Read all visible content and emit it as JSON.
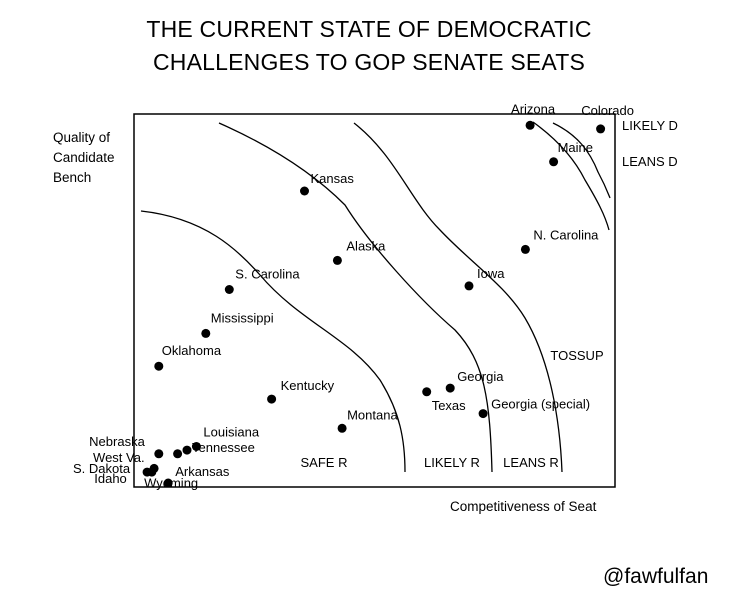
{
  "title_line1": "THE CURRENT STATE OF DEMOCRATIC",
  "title_line2": "CHALLENGES TO GOP SENATE SEATS",
  "y_label": [
    "Quality of",
    "Candidate",
    "Bench"
  ],
  "x_label": "Competitiveness of Seat",
  "credit": "@fawfulfan",
  "chart_data": {
    "type": "scatter",
    "title": "THE CURRENT STATE OF DEMOCRATIC CHALLENGES TO GOP SENATE SEATS",
    "xlabel": "Competitiveness of Seat",
    "ylabel": "Quality of Candidate Bench",
    "xlim": [
      0,
      100
    ],
    "ylim": [
      0,
      100
    ],
    "grid": false,
    "points": [
      {
        "name": "Arizona",
        "x": 83,
        "y": 98
      },
      {
        "name": "Colorado",
        "x": 98,
        "y": 97
      },
      {
        "name": "Maine",
        "x": 88,
        "y": 88
      },
      {
        "name": "Kansas",
        "x": 35,
        "y": 80
      },
      {
        "name": "N. Carolina",
        "x": 82,
        "y": 64
      },
      {
        "name": "Alaska",
        "x": 42,
        "y": 61
      },
      {
        "name": "Iowa",
        "x": 70,
        "y": 54
      },
      {
        "name": "S. Carolina",
        "x": 19,
        "y": 53
      },
      {
        "name": "Mississippi",
        "x": 14,
        "y": 41
      },
      {
        "name": "Oklahoma",
        "x": 4,
        "y": 32
      },
      {
        "name": "Georgia",
        "x": 66,
        "y": 26
      },
      {
        "name": "Texas",
        "x": 61,
        "y": 25
      },
      {
        "name": "Kentucky",
        "x": 28,
        "y": 23
      },
      {
        "name": "Georgia (special)",
        "x": 73,
        "y": 19
      },
      {
        "name": "Montana",
        "x": 43,
        "y": 15
      },
      {
        "name": "Louisiana",
        "x": 12,
        "y": 10
      },
      {
        "name": "Tennessee",
        "x": 10,
        "y": 9
      },
      {
        "name": "Nebraska",
        "x": 4,
        "y": 8
      },
      {
        "name": "West Va.",
        "x": 8,
        "y": 8
      },
      {
        "name": "Wyoming",
        "x": 3,
        "y": 4
      },
      {
        "name": "S. Dakota",
        "x": 1.5,
        "y": 3
      },
      {
        "name": "Idaho",
        "x": 2.5,
        "y": 3
      },
      {
        "name": "Arkansas",
        "x": 6,
        "y": 0
      }
    ],
    "zones": [
      "SAFE R",
      "LIKELY R",
      "LEANS R",
      "TOSSUP",
      "LEANS D",
      "LIKELY D"
    ]
  }
}
